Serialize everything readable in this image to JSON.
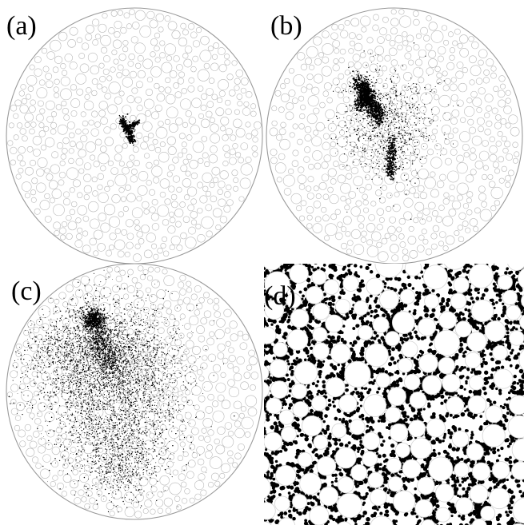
{
  "figure": {
    "panels": [
      {
        "id": "a",
        "label": "(a)",
        "spread_fraction": 0.04
      },
      {
        "id": "b",
        "label": "(b)",
        "spread_fraction": 0.25
      },
      {
        "id": "c",
        "label": "(c)",
        "spread_fraction": 0.55
      },
      {
        "id": "d",
        "label": "(d)",
        "spread_fraction": 1.0
      }
    ],
    "colors": {
      "grain_outline": "#b8b8b8",
      "boundary": "#9a9a9a",
      "particles": "#000000",
      "background": "#ffffff"
    }
  }
}
